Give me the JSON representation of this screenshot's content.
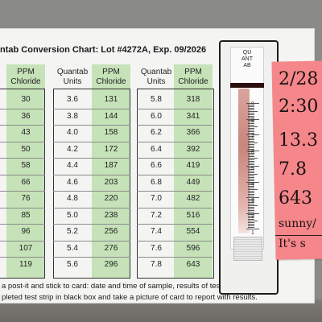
{
  "card": {
    "title": "ntab Conversion Chart: Lot #4272A, Exp. 09/2026"
  },
  "tables": [
    {
      "units_header": "",
      "ppm_header": "PPM\nChloride",
      "units": [],
      "ppm": [
        "30",
        "36",
        "43",
        "50",
        "58",
        "66",
        "76",
        "85",
        "96",
        "107",
        "119"
      ]
    },
    {
      "units_header": "Quantab\nUnits",
      "ppm_header": "PPM\nChloride",
      "units": [
        "3.6",
        "3.8",
        "4.0",
        "4.2",
        "4.4",
        "4.6",
        "4.8",
        "5.0",
        "5.2",
        "5.4",
        "5.6"
      ],
      "ppm": [
        "131",
        "144",
        "158",
        "172",
        "187",
        "203",
        "220",
        "238",
        "256",
        "276",
        "296"
      ]
    },
    {
      "units_header": "Quantab\nUnits",
      "ppm_header": "PPM\nChloride",
      "units": [
        "5.8",
        "6.0",
        "6.2",
        "6.4",
        "6.6",
        "6.8",
        "7.0",
        "7.2",
        "7.4",
        "7.6",
        "7.8"
      ],
      "ppm": [
        "318",
        "341",
        "366",
        "392",
        "419",
        "449",
        "482",
        "516",
        "554",
        "596",
        "643"
      ]
    }
  ],
  "instructions": [
    "a post-it and stick to card: date and time of sample, results of test strip.",
    "pleted test strip in black box and take a picture of card to report with results."
  ],
  "strip": {
    "label": "QUANTAB",
    "scale": [
      "9",
      "8",
      "7",
      "6",
      "5",
      "4",
      "3",
      "2",
      "1"
    ]
  },
  "postit": {
    "lines": [
      "2/28",
      "2:30",
      "13.3",
      "7.8",
      "643",
      "sunny/",
      "It's s"
    ]
  }
}
